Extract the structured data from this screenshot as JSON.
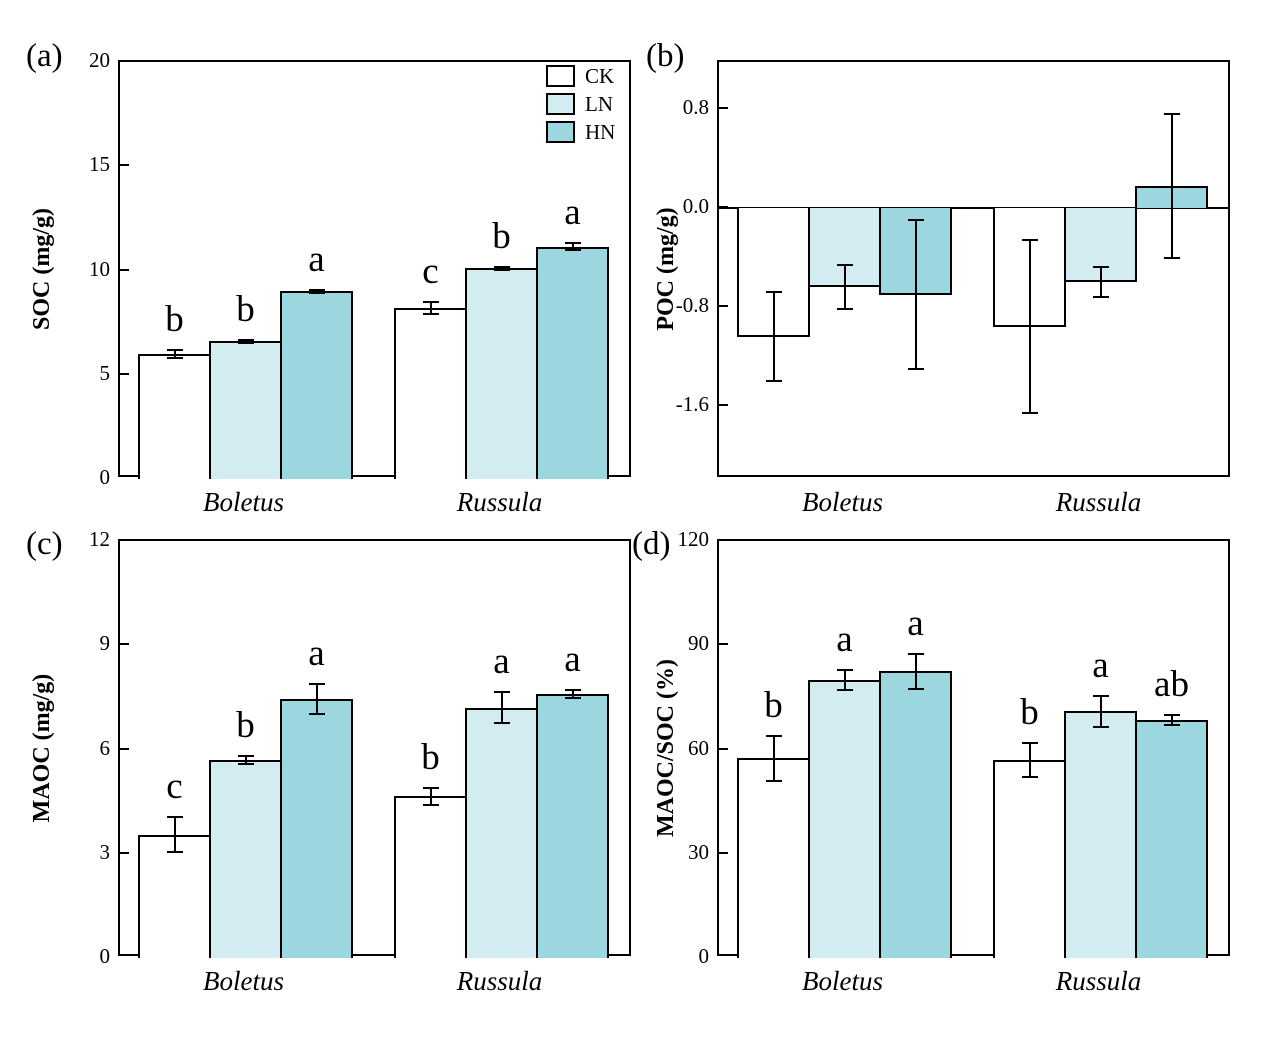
{
  "legend": {
    "items": [
      {
        "label": "CK",
        "color": "#ffffff"
      },
      {
        "label": "LN",
        "color": "#d2ecf2"
      },
      {
        "label": "HN",
        "color": "#9cd6de"
      }
    ],
    "position": "top-right-panel-a"
  },
  "chart_data": [
    {
      "panel_label": "(a)",
      "type": "bar",
      "title": "",
      "xlabel": "",
      "ylabel": "SOC (mg/g)",
      "ylim": [
        0,
        20
      ],
      "yticks": [
        {
          "v": 0,
          "label": "0"
        },
        {
          "v": 5,
          "label": "5"
        },
        {
          "v": 10,
          "label": "10"
        },
        {
          "v": 15,
          "label": "15"
        },
        {
          "v": 20,
          "label": "20"
        }
      ],
      "categories": [
        "Boletus",
        "Russula"
      ],
      "series": [
        {
          "name": "CK",
          "values": [
            6.0,
            8.2
          ],
          "errors": [
            0.2,
            0.3
          ],
          "letters": [
            "b",
            "c"
          ]
        },
        {
          "name": "LN",
          "values": [
            6.6,
            10.1
          ],
          "errors": [
            0.08,
            0.08
          ],
          "letters": [
            "b",
            "b"
          ]
        },
        {
          "name": "HN",
          "values": [
            9.0,
            11.15
          ],
          "errors": [
            0.08,
            0.15
          ],
          "letters": [
            "a",
            "a"
          ]
        }
      ],
      "show_legend": true,
      "zero_line": false,
      "grid": false
    },
    {
      "panel_label": "(b)",
      "type": "bar",
      "title": "",
      "xlabel": "",
      "ylabel": "POC (mg/g)",
      "ylim": [
        -2.19,
        1.18
      ],
      "yticks": [
        {
          "v": 0.8,
          "label": "0.8"
        },
        {
          "v": 0.0,
          "label": "0.0"
        },
        {
          "v": -0.8,
          "label": "-0.8"
        },
        {
          "v": -1.6,
          "label": "-1.6"
        }
      ],
      "categories": [
        "Boletus",
        "Russula"
      ],
      "series": [
        {
          "name": "CK",
          "values": [
            -1.04,
            -0.96
          ],
          "errors": [
            0.36,
            0.7
          ],
          "letters": [
            null,
            null
          ]
        },
        {
          "name": "LN",
          "values": [
            -0.64,
            -0.6
          ],
          "errors": [
            0.18,
            0.12
          ],
          "letters": [
            null,
            null
          ]
        },
        {
          "name": "HN",
          "values": [
            -0.7,
            0.18
          ],
          "errors": [
            0.6,
            0.58
          ],
          "letters": [
            null,
            null
          ]
        }
      ],
      "show_legend": false,
      "zero_line": true,
      "grid": false
    },
    {
      "panel_label": "(c)",
      "type": "bar",
      "title": "",
      "xlabel": "",
      "ylabel": "MAOC (mg/g)",
      "ylim": [
        0,
        12
      ],
      "yticks": [
        {
          "v": 0,
          "label": "0"
        },
        {
          "v": 3,
          "label": "3"
        },
        {
          "v": 6,
          "label": "6"
        },
        {
          "v": 9,
          "label": "9"
        },
        {
          "v": 12,
          "label": "12"
        }
      ],
      "categories": [
        "Boletus",
        "Russula"
      ],
      "series": [
        {
          "name": "CK",
          "values": [
            3.55,
            4.65
          ],
          "errors": [
            0.5,
            0.25
          ],
          "letters": [
            "c",
            "b"
          ]
        },
        {
          "name": "LN",
          "values": [
            5.7,
            7.2
          ],
          "errors": [
            0.12,
            0.45
          ],
          "letters": [
            "b",
            "a"
          ]
        },
        {
          "name": "HN",
          "values": [
            7.45,
            7.6
          ],
          "errors": [
            0.43,
            0.12
          ],
          "letters": [
            "a",
            "a"
          ]
        }
      ],
      "show_legend": false,
      "zero_line": false,
      "grid": false
    },
    {
      "panel_label": "(d)",
      "type": "bar",
      "title": "",
      "xlabel": "",
      "ylabel": "MAOC/SOC (%)",
      "ylim": [
        0,
        120
      ],
      "yticks": [
        {
          "v": 0,
          "label": "0"
        },
        {
          "v": 30,
          "label": "30"
        },
        {
          "v": 60,
          "label": "60"
        },
        {
          "v": 90,
          "label": "90"
        },
        {
          "v": 120,
          "label": "120"
        }
      ],
      "categories": [
        "Boletus",
        "Russula"
      ],
      "series": [
        {
          "name": "CK",
          "values": [
            57.5,
            57.0
          ],
          "errors": [
            6.5,
            5.0
          ],
          "letters": [
            "b",
            "b"
          ]
        },
        {
          "name": "LN",
          "values": [
            80.0,
            71.0
          ],
          "errors": [
            3.0,
            4.5
          ],
          "letters": [
            "a",
            "a"
          ]
        },
        {
          "name": "HN",
          "values": [
            82.5,
            68.5
          ],
          "errors": [
            5.0,
            1.5
          ],
          "letters": [
            "a",
            "ab"
          ]
        }
      ],
      "show_legend": false,
      "zero_line": false,
      "grid": false
    }
  ]
}
